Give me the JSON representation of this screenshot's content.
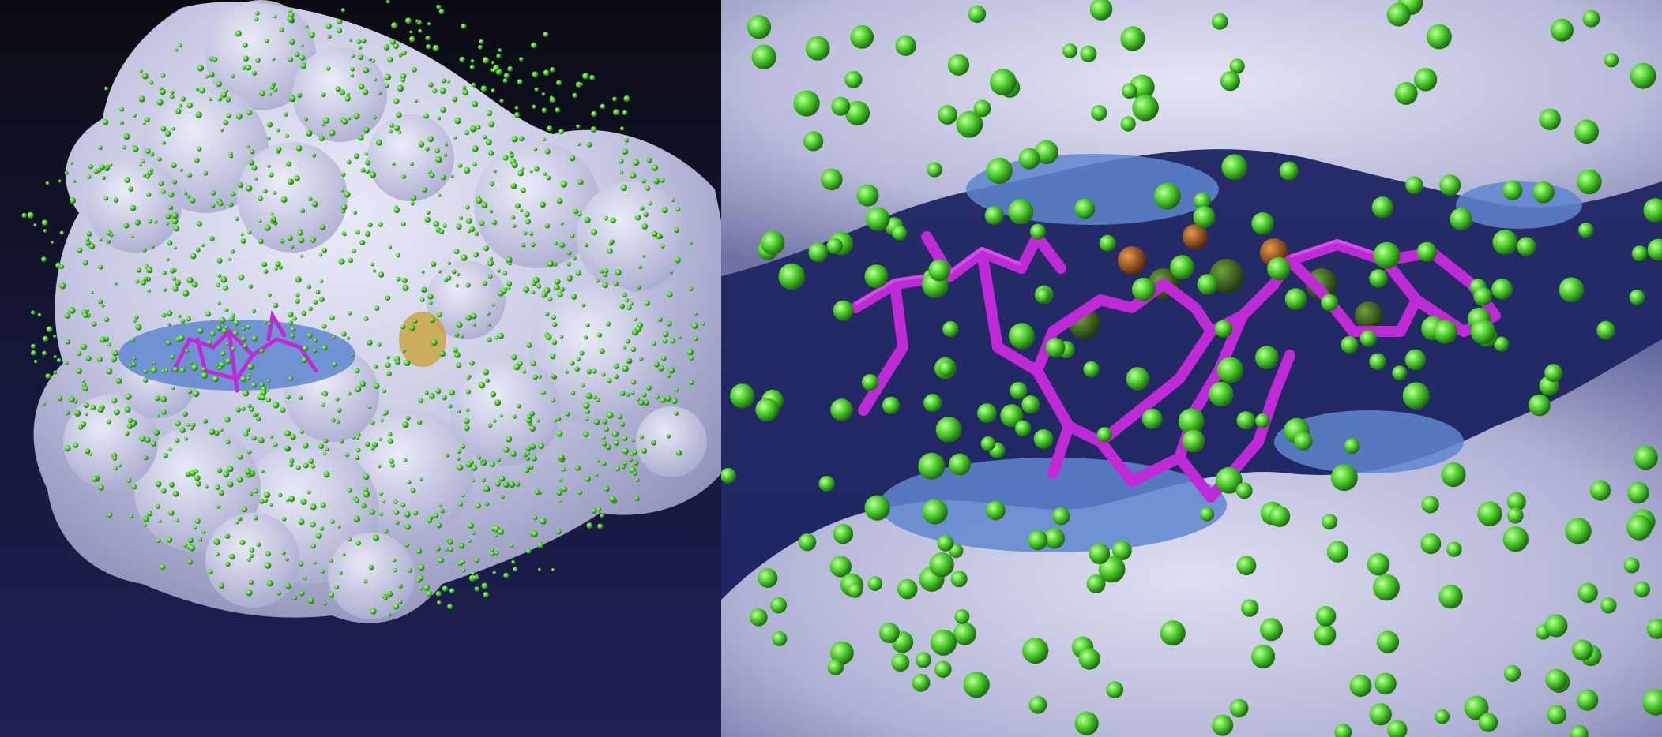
{
  "figure": {
    "panels": [
      {
        "name": "overview",
        "description_visible_text": ""
      },
      {
        "name": "binding-pocket-closeup",
        "description_visible_text": ""
      }
    ],
    "colors": {
      "protein_surface": "#c9cbe6",
      "hydrophobic_patch": "#5f86cf",
      "ligand": "#c02ad6",
      "spheres": "#56d43a",
      "waters_orange": "#c9782d",
      "background_top": "#0b0c12",
      "background_bottom": "#1f2157"
    },
    "icons": [
      "protein-surface",
      "ligand-stick-model",
      "probe-spheres"
    ]
  }
}
